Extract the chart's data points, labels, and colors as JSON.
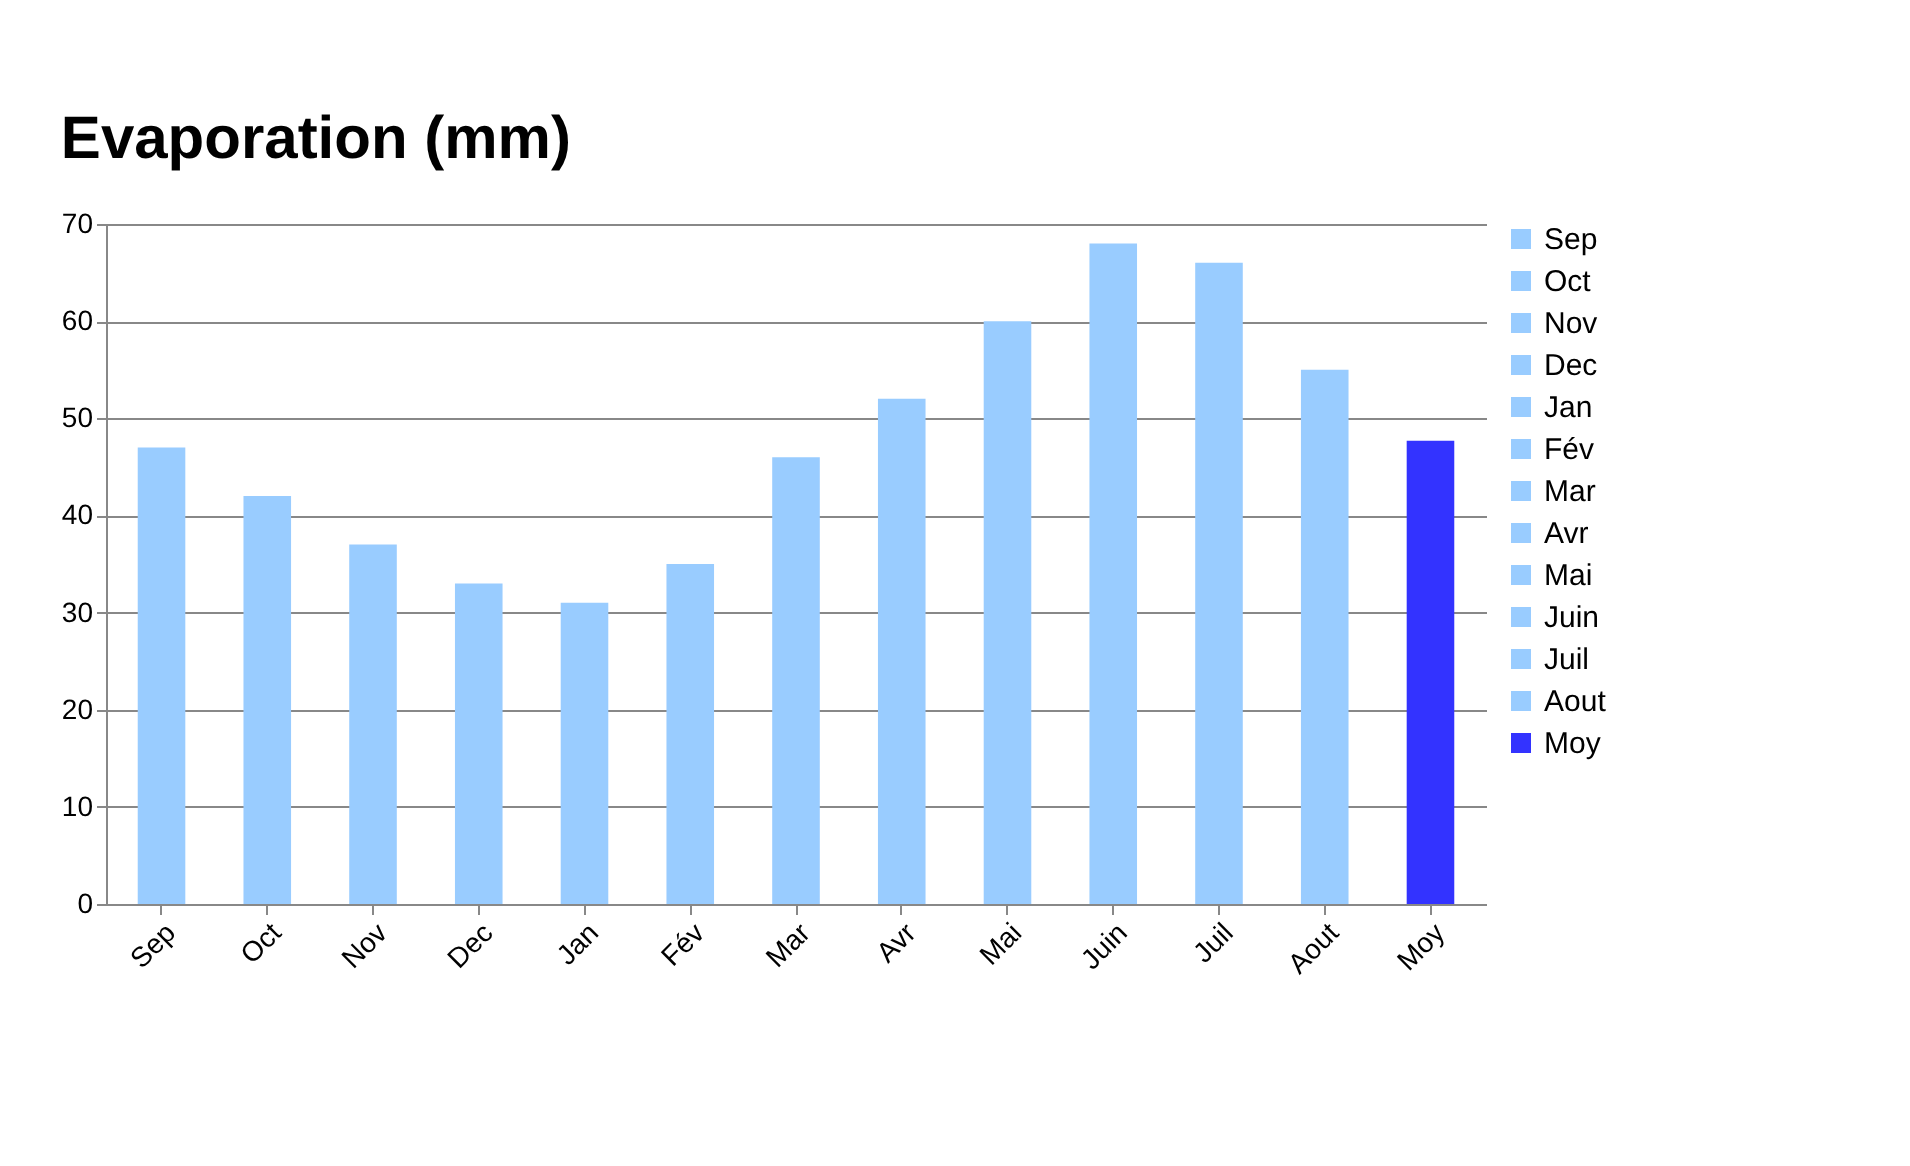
{
  "chart_data": {
    "type": "bar",
    "title": "Evaporation (mm)",
    "categories": [
      "Sep",
      "Oct",
      "Nov",
      "Dec",
      "Jan",
      "Fév",
      "Mar",
      "Avr",
      "Mai",
      "Juin",
      "Juil",
      "Aout",
      "Moy"
    ],
    "series": [
      {
        "name": "Sep",
        "color": "#99ccff",
        "values": [
          47,
          null,
          null,
          null,
          null,
          null,
          null,
          null,
          null,
          null,
          null,
          null,
          null
        ]
      },
      {
        "name": "Oct",
        "color": "#99ccff",
        "values": [
          null,
          42,
          null,
          null,
          null,
          null,
          null,
          null,
          null,
          null,
          null,
          null,
          null
        ]
      },
      {
        "name": "Nov",
        "color": "#99ccff",
        "values": [
          null,
          null,
          37,
          null,
          null,
          null,
          null,
          null,
          null,
          null,
          null,
          null,
          null
        ]
      },
      {
        "name": "Dec",
        "color": "#99ccff",
        "values": [
          null,
          null,
          null,
          33,
          null,
          null,
          null,
          null,
          null,
          null,
          null,
          null,
          null
        ]
      },
      {
        "name": "Jan",
        "color": "#99ccff",
        "values": [
          null,
          null,
          null,
          null,
          31,
          null,
          null,
          null,
          null,
          null,
          null,
          null,
          null
        ]
      },
      {
        "name": "Fév",
        "color": "#99ccff",
        "values": [
          null,
          null,
          null,
          null,
          null,
          35,
          null,
          null,
          null,
          null,
          null,
          null,
          null
        ]
      },
      {
        "name": "Mar",
        "color": "#99ccff",
        "values": [
          null,
          null,
          null,
          null,
          null,
          null,
          46,
          null,
          null,
          null,
          null,
          null,
          null
        ]
      },
      {
        "name": "Avr",
        "color": "#99ccff",
        "values": [
          null,
          null,
          null,
          null,
          null,
          null,
          null,
          52,
          null,
          null,
          null,
          null,
          null
        ]
      },
      {
        "name": "Mai",
        "color": "#99ccff",
        "values": [
          null,
          null,
          null,
          null,
          null,
          null,
          null,
          null,
          60,
          null,
          null,
          null,
          null
        ]
      },
      {
        "name": "Juin",
        "color": "#99ccff",
        "values": [
          null,
          null,
          null,
          null,
          null,
          null,
          null,
          null,
          null,
          68,
          null,
          null,
          null
        ]
      },
      {
        "name": "Juil",
        "color": "#99ccff",
        "values": [
          null,
          null,
          null,
          null,
          null,
          null,
          null,
          null,
          null,
          null,
          66,
          null,
          null
        ]
      },
      {
        "name": "Aout",
        "color": "#99ccff",
        "values": [
          null,
          null,
          null,
          null,
          null,
          null,
          null,
          null,
          null,
          null,
          null,
          55,
          null
        ]
      },
      {
        "name": "Moy",
        "color": "#3333ff",
        "values": [
          null,
          null,
          null,
          null,
          null,
          null,
          null,
          null,
          null,
          null,
          null,
          null,
          47.7
        ]
      }
    ],
    "ylim": [
      0,
      70
    ],
    "yticks": [
      0,
      10,
      20,
      30,
      40,
      50,
      60,
      70
    ],
    "grid": "y",
    "legend": "right"
  }
}
